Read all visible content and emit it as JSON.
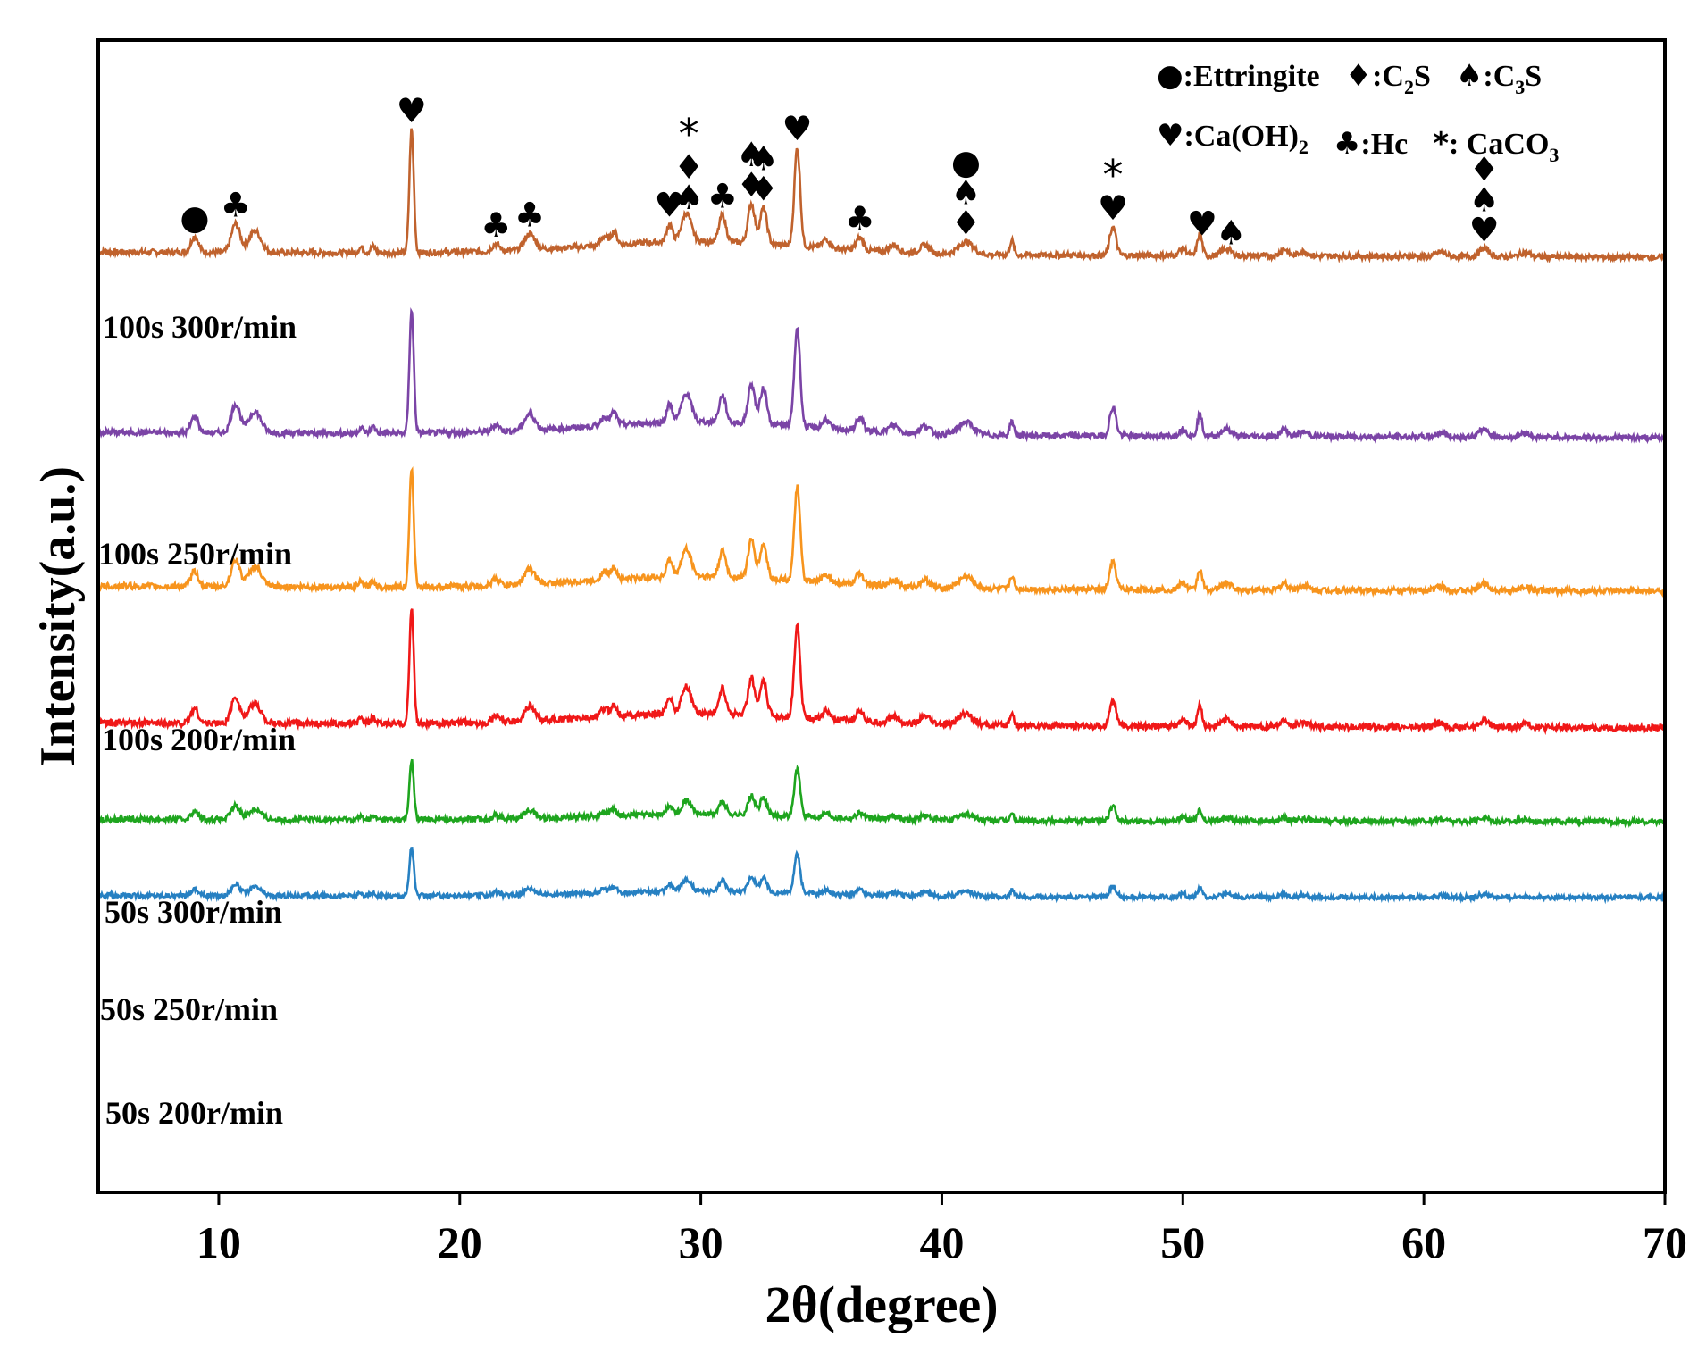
{
  "chart_data": {
    "type": "line",
    "title": "",
    "xlabel": "2θ(degree)",
    "ylabel": "Intensity(a.u.)",
    "xlim": [
      5,
      70
    ],
    "x_ticks": [
      "10",
      "20",
      "30",
      "40",
      "50",
      "60",
      "70"
    ],
    "x_tick_values": [
      10,
      20,
      30,
      40,
      50,
      60,
      70
    ],
    "legend": {
      "placement": "top-right",
      "row1": [
        {
          "symbol": "●",
          "text": ":Ettringite"
        },
        {
          "symbol": "♦",
          "text": ":C",
          "sub": "2",
          "tail": "S"
        },
        {
          "symbol": "♠",
          "text": ":C",
          "sub": "3",
          "tail": "S"
        }
      ],
      "row2": [
        {
          "symbol": "♥",
          "text": ":Ca(OH)",
          "sub": "2",
          "tail": ""
        },
        {
          "symbol": "♣",
          "text": ":Hc"
        },
        {
          "symbol": "*",
          "text": ":  CaCO",
          "sub": "3",
          "tail": ""
        }
      ]
    },
    "series": [
      {
        "name": "100s 300r/min",
        "color": "#c0622d",
        "baseline": 288,
        "scale": 1.0,
        "noise": 1.6
      },
      {
        "name": "100s 250r/min",
        "color": "#7b44a6",
        "baseline": 490,
        "scale": 1.0,
        "noise": 1.6
      },
      {
        "name": "100s 200r/min",
        "color": "#f7941d",
        "baseline": 662,
        "scale": 0.95,
        "noise": 1.7
      },
      {
        "name": "50s 300r/min",
        "color": "#f01818",
        "baseline": 815,
        "scale": 0.93,
        "noise": 1.8
      },
      {
        "name": "50s 250r/min",
        "color": "#1ea51e",
        "baseline": 920,
        "scale": 0.48,
        "noise": 1.5
      },
      {
        "name": "50s 200r/min",
        "color": "#2680c2",
        "baseline": 1005,
        "scale": 0.4,
        "noise": 1.3
      }
    ],
    "peaks": [
      {
        "x": 9.0,
        "h": 18,
        "w": 0.15
      },
      {
        "x": 10.7,
        "h": 32,
        "w": 0.18
      },
      {
        "x": 11.5,
        "h": 24,
        "w": 0.25
      },
      {
        "x": 15.9,
        "h": 6,
        "w": 0.1
      },
      {
        "x": 16.4,
        "h": 7,
        "w": 0.1
      },
      {
        "x": 18.0,
        "h": 138,
        "w": 0.09
      },
      {
        "x": 21.5,
        "h": 8,
        "w": 0.15
      },
      {
        "x": 22.9,
        "h": 18,
        "w": 0.22
      },
      {
        "x": 26.0,
        "h": 10,
        "w": 0.15
      },
      {
        "x": 26.4,
        "h": 14,
        "w": 0.12
      },
      {
        "x": 28.7,
        "h": 20,
        "w": 0.12
      },
      {
        "x": 29.4,
        "h": 32,
        "w": 0.2
      },
      {
        "x": 30.9,
        "h": 30,
        "w": 0.14
      },
      {
        "x": 32.1,
        "h": 44,
        "w": 0.14
      },
      {
        "x": 32.6,
        "h": 40,
        "w": 0.14
      },
      {
        "x": 34.0,
        "h": 110,
        "w": 0.12
      },
      {
        "x": 35.2,
        "h": 10,
        "w": 0.15
      },
      {
        "x": 36.6,
        "h": 14,
        "w": 0.15
      },
      {
        "x": 38.0,
        "h": 8,
        "w": 0.2
      },
      {
        "x": 39.3,
        "h": 9,
        "w": 0.2
      },
      {
        "x": 41.0,
        "h": 14,
        "w": 0.3
      },
      {
        "x": 42.9,
        "h": 16,
        "w": 0.08
      },
      {
        "x": 47.1,
        "h": 32,
        "w": 0.13
      },
      {
        "x": 50.0,
        "h": 8,
        "w": 0.15
      },
      {
        "x": 50.7,
        "h": 24,
        "w": 0.1
      },
      {
        "x": 51.8,
        "h": 8,
        "w": 0.2
      },
      {
        "x": 54.2,
        "h": 8,
        "w": 0.15
      },
      {
        "x": 55.0,
        "h": 5,
        "w": 0.2
      },
      {
        "x": 60.7,
        "h": 5,
        "w": 0.2
      },
      {
        "x": 62.5,
        "h": 9,
        "w": 0.2
      },
      {
        "x": 64.2,
        "h": 5,
        "w": 0.2
      }
    ],
    "peak_labels": [
      {
        "x": 9.0,
        "symbols": "●"
      },
      {
        "x": 10.7,
        "symbols": "♣"
      },
      {
        "x": 18.0,
        "symbols": "♥"
      },
      {
        "x": 21.5,
        "symbols": "♣"
      },
      {
        "x": 22.9,
        "symbols": "♣"
      },
      {
        "x": 28.7,
        "symbols": "♥"
      },
      {
        "x": 29.5,
        "symbols": "*♦♠"
      },
      {
        "x": 30.9,
        "symbols": "♣"
      },
      {
        "x": 32.1,
        "symbols": "♠♦"
      },
      {
        "x": 32.6,
        "symbols": "♠♦"
      },
      {
        "x": 34.0,
        "symbols": "♥"
      },
      {
        "x": 36.6,
        "symbols": "♣"
      },
      {
        "x": 41.0,
        "symbols": "●♠♦"
      },
      {
        "x": 47.1,
        "symbols": "*♥"
      },
      {
        "x": 50.8,
        "symbols": "♥"
      },
      {
        "x": 52.0,
        "symbols": "♠"
      },
      {
        "x": 62.5,
        "symbols": "♦♠♥"
      }
    ]
  }
}
